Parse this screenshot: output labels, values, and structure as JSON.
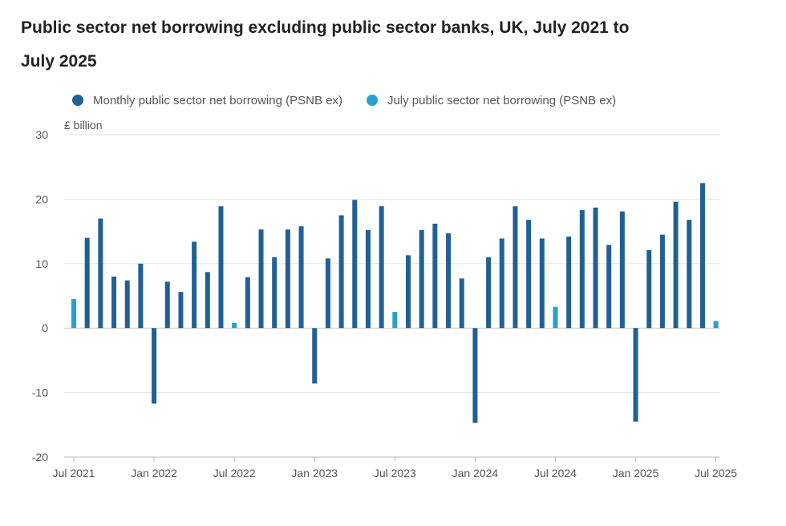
{
  "chart_data": {
    "type": "bar",
    "title": "Public sector net borrowing excluding public sector banks, UK, July 2021 to July 2025",
    "ylabel": "£ billion",
    "xlabel": "",
    "ylim": [
      -20,
      30
    ],
    "yticks": [
      30,
      20,
      10,
      0,
      -10,
      -20
    ],
    "xtick_labels": [
      "Jul 2021",
      "Jan 2022",
      "Jul 2022",
      "Jan 2023",
      "Jul 2023",
      "Jan 2024",
      "Jul 2024",
      "Jan 2025",
      "Jul 2025"
    ],
    "legend_position": "top",
    "series": [
      {
        "name": "Monthly public sector net borrowing (PSNB ex)",
        "color": "#206095"
      },
      {
        "name": "July public sector net borrowing (PSNB ex)",
        "color": "#27a0cc"
      }
    ],
    "categories": [
      "Jul 2021",
      "Aug 2021",
      "Sep 2021",
      "Oct 2021",
      "Nov 2021",
      "Dec 2021",
      "Jan 2022",
      "Feb 2022",
      "Mar 2022",
      "Apr 2022",
      "May 2022",
      "Jun 2022",
      "Jul 2022",
      "Aug 2022",
      "Sep 2022",
      "Oct 2022",
      "Nov 2022",
      "Dec 2022",
      "Jan 2023",
      "Feb 2023",
      "Mar 2023",
      "Apr 2023",
      "May 2023",
      "Jun 2023",
      "Jul 2023",
      "Aug 2023",
      "Sep 2023",
      "Oct 2023",
      "Nov 2023",
      "Dec 2023",
      "Jan 2024",
      "Feb 2024",
      "Mar 2024",
      "Apr 2024",
      "May 2024",
      "Jun 2024",
      "Jul 2024",
      "Aug 2024",
      "Sep 2024",
      "Oct 2024",
      "Nov 2024",
      "Dec 2024",
      "Jan 2025",
      "Feb 2025",
      "Mar 2025",
      "Apr 2025",
      "May 2025",
      "Jun 2025",
      "Jul 2025"
    ],
    "values": [
      4.5,
      14.0,
      17.0,
      8.0,
      7.4,
      10.0,
      -11.7,
      7.2,
      5.6,
      13.4,
      8.7,
      18.9,
      0.8,
      7.9,
      15.3,
      11.0,
      15.3,
      15.8,
      -8.6,
      10.8,
      17.5,
      19.9,
      15.2,
      18.9,
      2.5,
      11.3,
      15.2,
      16.2,
      14.7,
      7.7,
      -14.7,
      11.0,
      13.9,
      18.9,
      16.8,
      13.9,
      3.3,
      14.2,
      18.3,
      18.7,
      12.9,
      18.1,
      -14.5,
      12.1,
      14.5,
      19.6,
      16.8,
      22.5,
      1.1
    ],
    "highlight_indices": [
      0,
      12,
      24,
      36,
      48
    ]
  }
}
